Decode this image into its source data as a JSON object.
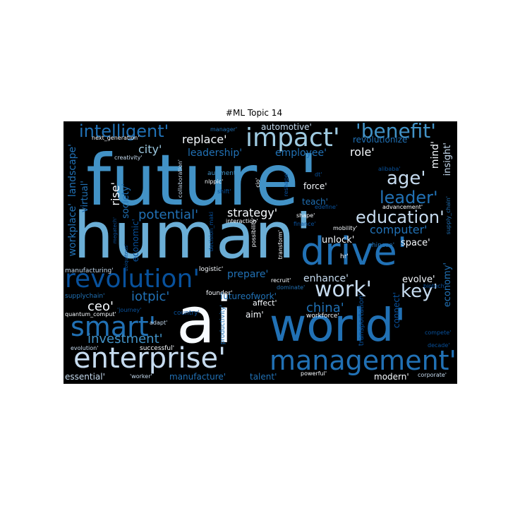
{
  "title": "#ML Topic 14",
  "palette": {
    "background": "#000000",
    "blue_light": "#6baed6",
    "blue_mid": "#4292c6",
    "blue_dark": "#2171b5",
    "blue_navy": "#08519c",
    "white": "#f7fbff"
  },
  "words": [
    {
      "text": "future'",
      "color": "#4292c6"
    },
    {
      "text": "human'",
      "color": "#6baed6"
    },
    {
      "text": "ai",
      "color": "#f7fbff"
    },
    {
      "text": "world'",
      "color": "#2171b5"
    },
    {
      "text": "drive'",
      "color": "#2171b5"
    },
    {
      "text": "enterprise'",
      "color": "#c6dbef"
    },
    {
      "text": "management'",
      "color": "#2171b5"
    },
    {
      "text": "smart'",
      "color": "#2171b5"
    },
    {
      "text": "revolution'",
      "color": "#08519c"
    },
    {
      "text": "impact'",
      "color": "#9ecae1"
    },
    {
      "text": "'benefit'",
      "color": "#4292c6"
    },
    {
      "text": "intelligent'",
      "color": "#2171b5"
    },
    {
      "text": "work'",
      "color": "#c6dbef"
    },
    {
      "text": "key'",
      "color": "#c6dbef"
    },
    {
      "text": "education'",
      "color": "#c6dbef"
    },
    {
      "text": "age'",
      "color": "#c6dbef"
    },
    {
      "text": "leader'",
      "color": "#2171b5"
    },
    {
      "text": "investment'",
      "color": "#4292c6"
    },
    {
      "text": "china'",
      "color": "#2171b5"
    },
    {
      "text": "ceo'",
      "color": "#f7fbff"
    },
    {
      "text": "iotpic'",
      "color": "#2171b5"
    },
    {
      "text": "potential'",
      "color": "#2171b5"
    },
    {
      "text": "strategy'",
      "color": "#f7fbff"
    },
    {
      "text": "computer'",
      "color": "#2171b5"
    },
    {
      "text": "city'",
      "color": "#9ecae1"
    },
    {
      "text": "replace'",
      "color": "#f7fbff"
    },
    {
      "text": "leadership'",
      "color": "#2171b5"
    },
    {
      "text": "employee'",
      "color": "#2171b5"
    },
    {
      "text": "role'",
      "color": "#f7fbff"
    },
    {
      "text": "automotive'",
      "color": "#c6dbef"
    },
    {
      "text": "revolutionize'",
      "color": "#2171b5"
    },
    {
      "text": "rise'",
      "color": "#f7fbff"
    },
    {
      "text": "society'",
      "color": "#2171b5"
    },
    {
      "text": "economic'",
      "color": "#08519c"
    },
    {
      "text": "virtual'",
      "color": "#2171b5"
    },
    {
      "text": "landscape'",
      "color": "#2171b5"
    },
    {
      "text": "workplace'",
      "color": "#2171b5"
    },
    {
      "text": "prepare'",
      "color": "#2171b5"
    },
    {
      "text": "futureofwork'",
      "color": "#2171b5"
    },
    {
      "text": "enhance'",
      "color": "#c6dbef"
    },
    {
      "text": "evolve'",
      "color": "#f7fbff"
    },
    {
      "text": "economy'",
      "color": "#2171b5"
    },
    {
      "text": "mind'",
      "color": "#f7fbff"
    },
    {
      "text": "insight'",
      "color": "#c6dbef"
    },
    {
      "text": "space'",
      "color": "#f7fbff"
    },
    {
      "text": "unlock'",
      "color": "#f7fbff"
    },
    {
      "text": "teach'",
      "color": "#2171b5"
    },
    {
      "text": "force'",
      "color": "#f7fbff"
    },
    {
      "text": "aim'",
      "color": "#f7fbff"
    },
    {
      "text": "affect'",
      "color": "#f7fbff"
    },
    {
      "text": "essential'",
      "color": "#c6dbef"
    },
    {
      "text": "manufacture'",
      "color": "#2171b5"
    },
    {
      "text": "talent'",
      "color": "#2171b5"
    },
    {
      "text": "modern'",
      "color": "#f7fbff"
    },
    {
      "text": "connect'",
      "color": "#08519c"
    },
    {
      "text": "transportation'",
      "color": "#08519c"
    },
    {
      "text": "supplychain'",
      "color": "#2171b5"
    },
    {
      "text": "manufacturing'",
      "color": "#c6dbef"
    },
    {
      "text": "logistic'",
      "color": "#f7fbff"
    },
    {
      "text": "founder'",
      "color": "#f7fbff"
    },
    {
      "text": "country'",
      "color": "#08519c"
    },
    {
      "text": "adapt'",
      "color": "#c6dbef"
    },
    {
      "text": "successful'",
      "color": "#f7fbff"
    },
    {
      "text": "'worker'",
      "color": "#c6dbef"
    },
    {
      "text": "powerful'",
      "color": "#f7fbff"
    },
    {
      "text": "corporate'",
      "color": "#c6dbef"
    },
    {
      "text": "productivity'",
      "color": "#2171b5"
    },
    {
      "text": "workforce'",
      "color": "#f7fbff"
    },
    {
      "text": "recruit'",
      "color": "#f7fbff"
    },
    {
      "text": "dominate'",
      "color": "#2171b5"
    },
    {
      "text": "hr'",
      "color": "#f7fbff"
    },
    {
      "text": "chinese'",
      "color": "#2171b5"
    },
    {
      "text": "biotech'",
      "color": "#08519c"
    },
    {
      "text": "compete'",
      "color": "#08519c"
    },
    {
      "text": "decade'",
      "color": "#08519c"
    },
    {
      "text": "supply_chain'",
      "color": "#2171b5"
    },
    {
      "text": "mobility'",
      "color": "#f7fbff"
    },
    {
      "text": "advancement'",
      "color": "#f7fbff"
    },
    {
      "text": "alibaba'",
      "color": "#08519c"
    },
    {
      "text": "dt'",
      "color": "#08519c"
    },
    {
      "text": "reshape'",
      "color": "#08519c"
    },
    {
      "text": "shape'",
      "color": "#f7fbff"
    },
    {
      "text": "finance'",
      "color": "#08519c"
    },
    {
      "text": "edefine'",
      "color": "#08519c"
    },
    {
      "text": "transform'",
      "color": "#f7fbff"
    },
    {
      "text": "possibility'",
      "color": "#f7fbff"
    },
    {
      "text": "interaction'",
      "color": "#f7fbff"
    },
    {
      "text": "cio'",
      "color": "#f7fbff"
    },
    {
      "text": "shift'",
      "color": "#08519c"
    },
    {
      "text": "augment'",
      "color": "#4292c6"
    },
    {
      "text": "nlppic'",
      "color": "#f7fbff"
    },
    {
      "text": "collaboration'",
      "color": "#c6dbef"
    },
    {
      "text": "decision_maki",
      "color": "#08519c"
    },
    {
      "text": "manager'",
      "color": "#2171b5"
    },
    {
      "text": "next_generation'",
      "color": "#f7fbff"
    },
    {
      "text": "creativity'",
      "color": "#c6dbef"
    },
    {
      "text": "ubiquitous'",
      "color": "#08519c"
    },
    {
      "text": "quantum_comput'",
      "color": "#f7fbff"
    },
    {
      "text": "'journey'",
      "color": "#08519c"
    },
    {
      "text": "evolution'",
      "color": "#c6dbef"
    },
    {
      "text": "megatech'",
      "color": "#08519c"
    }
  ]
}
